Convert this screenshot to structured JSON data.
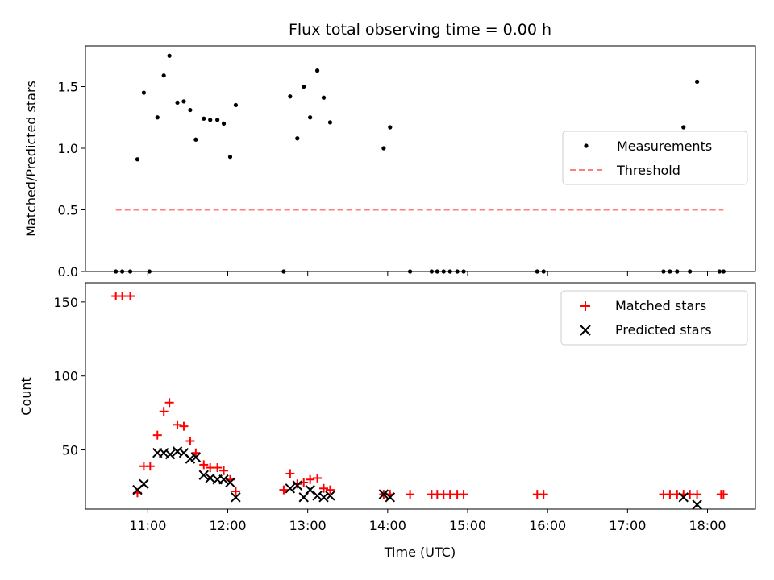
{
  "chart_data": {
    "title": "Flux total observing time = 0.00 h",
    "xlabel": "Time (UTC)",
    "x_ticks": [
      "11:00",
      "12:00",
      "13:00",
      "14:00",
      "15:00",
      "16:00",
      "17:00",
      "18:00"
    ],
    "x_tick_hours": [
      11,
      12,
      13,
      14,
      15,
      16,
      17,
      18
    ],
    "xlim_hours": [
      10.22,
      18.6
    ],
    "panels": [
      {
        "type": "scatter",
        "ylabel": "Matched/Predicted stars",
        "ylim": [
          0,
          1.83
        ],
        "y_ticks": [
          "0.0",
          "0.5",
          "1.0",
          "1.5"
        ],
        "y_tick_values": [
          0,
          0.5,
          1.0,
          1.5
        ],
        "legend_position": "center-right",
        "series": [
          {
            "name": "Measurements",
            "kind": "points",
            "color": "#000000",
            "x_hours": [
              10.6,
              10.68,
              10.78,
              10.87,
              10.95,
              11.02,
              11.12,
              11.2,
              11.27,
              11.37,
              11.45,
              11.53,
              11.6,
              11.7,
              11.78,
              11.87,
              11.95,
              12.03,
              12.1,
              12.7,
              12.78,
              12.87,
              12.95,
              13.03,
              13.12,
              13.2,
              13.28,
              13.95,
              14.03,
              14.28,
              14.55,
              14.62,
              14.7,
              14.78,
              14.87,
              14.95,
              15.87,
              15.95,
              17.45,
              17.53,
              17.62,
              17.7,
              17.78,
              17.87,
              18.15,
              18.2
            ],
            "y": [
              0,
              0,
              0,
              0.91,
              1.45,
              0,
              1.25,
              1.59,
              1.75,
              1.37,
              1.38,
              1.31,
              1.07,
              1.24,
              1.23,
              1.23,
              1.2,
              0.93,
              1.35,
              0,
              1.42,
              1.08,
              1.5,
              1.25,
              1.63,
              1.41,
              1.21,
              1.0,
              1.17,
              0,
              0,
              0,
              0,
              0,
              0,
              0,
              0,
              0,
              0,
              0,
              0,
              1.17,
              0,
              1.54,
              0,
              0
            ]
          },
          {
            "name": "Threshold",
            "kind": "dashed-line",
            "color": "#ff7f7f",
            "x_hours": [
              10.6,
              18.2
            ],
            "y": [
              0.5,
              0.5
            ]
          }
        ]
      },
      {
        "type": "scatter",
        "ylabel": "Count",
        "ylim": [
          10,
          163
        ],
        "y_ticks": [
          "50",
          "100",
          "150"
        ],
        "y_tick_values": [
          50,
          100,
          150
        ],
        "legend_position": "upper-right",
        "series": [
          {
            "name": "Matched stars",
            "kind": "plus",
            "color": "#ff0000",
            "x_hours": [
              10.6,
              10.68,
              10.78,
              10.87,
              10.95,
              11.03,
              11.12,
              11.2,
              11.27,
              11.37,
              11.45,
              11.53,
              11.6,
              11.7,
              11.78,
              11.87,
              11.95,
              12.03,
              12.1,
              12.7,
              12.78,
              12.87,
              12.95,
              13.03,
              13.12,
              13.2,
              13.28,
              13.95,
              14.03,
              14.28,
              14.55,
              14.62,
              14.7,
              14.78,
              14.87,
              14.95,
              15.87,
              15.95,
              17.45,
              17.53,
              17.62,
              17.7,
              17.78,
              17.87,
              18.17,
              18.2
            ],
            "y": [
              154,
              154,
              154,
              21,
              39,
              39,
              60,
              76,
              82,
              67,
              66,
              56,
              48,
              40,
              38,
              38,
              36,
              30,
              22,
              23,
              34,
              27,
              28,
              30,
              31,
              24,
              23,
              20,
              20,
              20,
              20,
              20,
              20,
              20,
              20,
              20,
              20,
              20,
              20,
              20,
              20,
              20,
              20,
              20,
              20,
              20
            ]
          },
          {
            "name": "Predicted stars",
            "kind": "x",
            "color": "#000000",
            "x_hours": [
              10.87,
              10.95,
              11.12,
              11.2,
              11.28,
              11.37,
              11.45,
              11.53,
              11.6,
              11.7,
              11.78,
              11.87,
              11.95,
              12.03,
              12.1,
              12.78,
              12.87,
              12.95,
              13.03,
              13.12,
              13.2,
              13.28,
              13.95,
              14.03,
              17.7,
              17.87
            ],
            "y": [
              23,
              27,
              48,
              48,
              47,
              49,
              48,
              44,
              45,
              33,
              31,
              30,
              30,
              28,
              18,
              24,
              26,
              18,
              23,
              19,
              18,
              19,
              20,
              18,
              18,
              13
            ]
          }
        ]
      }
    ]
  }
}
